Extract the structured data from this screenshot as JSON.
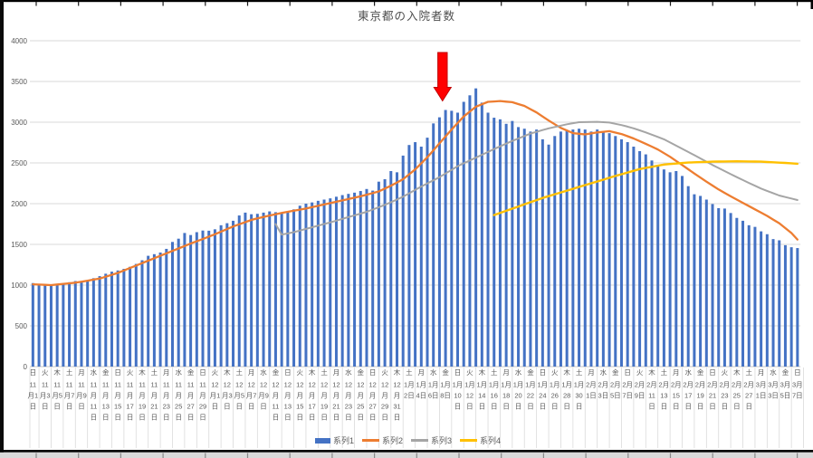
{
  "chart_data": {
    "type": "combo",
    "title": "東京都の入院者数",
    "ylim": [
      0,
      4000
    ],
    "yticks": [
      0,
      500,
      1000,
      1500,
      2000,
      2500,
      3000,
      3500,
      4000
    ],
    "n_points": 127,
    "x_label_interval": 2,
    "x_labels": [
      "日 11月1日",
      "火 11月3日",
      "木 11月5日",
      "土 11月7日",
      "月 11月9日",
      "水 11月11日",
      "金 11月13日",
      "日 11月15日",
      "火 11月17日",
      "木 11月19日",
      "土 11月21日",
      "月 11月23日",
      "水 11月25日",
      "金 11月27日",
      "日 11月29日",
      "火 12月1日",
      "木 12月3日",
      "土 12月5日",
      "月 12月7日",
      "水 12月9日",
      "金 12月11日",
      "日 12月13日",
      "火 12月15日",
      "木 12月17日",
      "土 12月19日",
      "月 12月21日",
      "水 12月23日",
      "金 12月25日",
      "日 12月27日",
      "火 12月29日",
      "木 12月31日",
      "土 1月2日",
      "月 1月4日",
      "水 1月6日",
      "金 1月8日",
      "日 1月10日",
      "火 1月12日",
      "木 1月14日",
      "土 1月16日",
      "月 1月18日",
      "水 1月20日",
      "金 1月22日",
      "日 1月24日",
      "火 1月26日",
      "木 1月28日",
      "土 1月30日",
      "月 2月1日",
      "水 2月3日",
      "金 2月5日",
      "日 2月7日",
      "火 2月9日",
      "木 2月11日",
      "土 2月13日",
      "月 2月15日",
      "水 2月17日",
      "金 2月19日",
      "日 2月21日",
      "火 2月23日",
      "木 2月25日",
      "土 2月27日",
      "月 3月1日",
      "水 3月3日",
      "金 3月5日",
      "日 3月7日"
    ],
    "series": [
      {
        "name": "系列1",
        "type": "bar",
        "color": "#4472C4",
        "values": [
          1025,
          1010,
          1000,
          995,
          1000,
          1012,
          1035,
          1050,
          1040,
          1055,
          1085,
          1110,
          1140,
          1165,
          1180,
          1200,
          1225,
          1260,
          1305,
          1360,
          1380,
          1400,
          1445,
          1530,
          1570,
          1640,
          1615,
          1650,
          1670,
          1668,
          1685,
          1735,
          1760,
          1790,
          1855,
          1890,
          1870,
          1875,
          1890,
          1905,
          1895,
          1880,
          1900,
          1930,
          1975,
          2000,
          2015,
          2035,
          2050,
          2065,
          2085,
          2105,
          2120,
          2135,
          2155,
          2180,
          2160,
          2270,
          2300,
          2400,
          2385,
          2590,
          2720,
          2755,
          2700,
          2810,
          2985,
          3060,
          3150,
          3140,
          3117,
          3250,
          3330,
          3415,
          3240,
          3117,
          3055,
          3035,
          2980,
          3015,
          2940,
          2920,
          2885,
          2910,
          2790,
          2725,
          2830,
          2885,
          2905,
          2910,
          2920,
          2910,
          2885,
          2910,
          2885,
          2865,
          2830,
          2790,
          2755,
          2700,
          2645,
          2605,
          2530,
          2475,
          2420,
          2385,
          2400,
          2340,
          2215,
          2115,
          2095,
          2050,
          1995,
          1945,
          1940,
          1885,
          1825,
          1790,
          1735,
          1715,
          1660,
          1625,
          1565,
          1550,
          1490,
          1465,
          1455
        ]
      },
      {
        "name": "系列2",
        "type": "line",
        "color": "#ED7D31",
        "width": 2.3,
        "knots": [
          [
            0,
            1010
          ],
          [
            3,
            1000
          ],
          [
            7,
            1030
          ],
          [
            11,
            1080
          ],
          [
            14,
            1150
          ],
          [
            17,
            1240
          ],
          [
            20,
            1330
          ],
          [
            23,
            1420
          ],
          [
            26,
            1510
          ],
          [
            28,
            1565
          ],
          [
            30,
            1625
          ],
          [
            33,
            1720
          ],
          [
            36,
            1800
          ],
          [
            39,
            1855
          ],
          [
            42,
            1900
          ],
          [
            45,
            1940
          ],
          [
            48,
            1990
          ],
          [
            51,
            2040
          ],
          [
            54,
            2090
          ],
          [
            57,
            2150
          ],
          [
            59,
            2220
          ],
          [
            61,
            2300
          ],
          [
            63,
            2420
          ],
          [
            65,
            2570
          ],
          [
            67,
            2740
          ],
          [
            69,
            2910
          ],
          [
            71,
            3070
          ],
          [
            73,
            3190
          ],
          [
            75,
            3250
          ],
          [
            77,
            3260
          ],
          [
            79,
            3245
          ],
          [
            81,
            3200
          ],
          [
            83,
            3120
          ],
          [
            85,
            3020
          ],
          [
            87,
            2930
          ],
          [
            89,
            2865
          ],
          [
            91,
            2850
          ],
          [
            93,
            2875
          ],
          [
            95,
            2890
          ],
          [
            97,
            2855
          ],
          [
            99,
            2800
          ],
          [
            101,
            2735
          ],
          [
            103,
            2665
          ],
          [
            105,
            2575
          ],
          [
            107,
            2475
          ],
          [
            109,
            2370
          ],
          [
            111,
            2270
          ],
          [
            113,
            2175
          ],
          [
            115,
            2090
          ],
          [
            117,
            2010
          ],
          [
            119,
            1930
          ],
          [
            121,
            1850
          ],
          [
            123,
            1760
          ],
          [
            125,
            1640
          ],
          [
            126,
            1560
          ]
        ]
      },
      {
        "name": "系列3",
        "type": "line",
        "color": "#A5A5A5",
        "width": 2.0,
        "knots": [
          [
            40,
            1750
          ],
          [
            41,
            1620
          ],
          [
            43,
            1650
          ],
          [
            46,
            1710
          ],
          [
            49,
            1770
          ],
          [
            52,
            1835
          ],
          [
            55,
            1900
          ],
          [
            58,
            1985
          ],
          [
            61,
            2085
          ],
          [
            64,
            2210
          ],
          [
            67,
            2325
          ],
          [
            70,
            2460
          ],
          [
            73,
            2565
          ],
          [
            76,
            2670
          ],
          [
            79,
            2770
          ],
          [
            82,
            2860
          ],
          [
            85,
            2925
          ],
          [
            88,
            2975
          ],
          [
            90,
            3000
          ],
          [
            93,
            3005
          ],
          [
            95,
            2995
          ],
          [
            97,
            2965
          ],
          [
            99,
            2925
          ],
          [
            101,
            2875
          ],
          [
            104,
            2790
          ],
          [
            108,
            2635
          ],
          [
            112,
            2475
          ],
          [
            116,
            2325
          ],
          [
            120,
            2185
          ],
          [
            123,
            2100
          ],
          [
            126,
            2045
          ]
        ]
      },
      {
        "name": "系列4",
        "type": "line",
        "color": "#FFC000",
        "width": 2.4,
        "knots": [
          [
            76,
            1860
          ],
          [
            80,
            1965
          ],
          [
            84,
            2070
          ],
          [
            88,
            2160
          ],
          [
            92,
            2250
          ],
          [
            96,
            2340
          ],
          [
            100,
            2425
          ],
          [
            104,
            2480
          ],
          [
            108,
            2505
          ],
          [
            112,
            2515
          ],
          [
            116,
            2520
          ],
          [
            120,
            2515
          ],
          [
            124,
            2500
          ],
          [
            126,
            2490
          ]
        ]
      }
    ],
    "annotation": {
      "shape": "block-arrow-down",
      "color": "#FF0000",
      "border_color": "#C00000",
      "x_index": 67.5,
      "value_top": 3856,
      "value_tip": 3261
    },
    "axis_text_color": "#595959",
    "gridline_color": "#D9D9D9"
  }
}
